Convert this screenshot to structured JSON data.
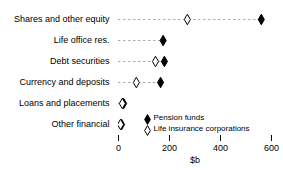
{
  "chart_data": {
    "type": "dot",
    "orientation": "horizontal",
    "categories": [
      "Shares and other equity",
      "Life office res.",
      "Debt securities",
      "Currency and deposits",
      "Loans and placements",
      "Other financial"
    ],
    "series": [
      {
        "name": "Pension funds",
        "color": "#000000",
        "marker": "filled_diamond",
        "values": [
          560,
          175,
          180,
          165,
          20,
          12
        ]
      },
      {
        "name": "Life insurance corporations",
        "color": "#000000",
        "marker": "open_diamond",
        "values": [
          270,
          null,
          145,
          70,
          15,
          8
        ]
      }
    ],
    "xlabel": "$b",
    "xlim": [
      0,
      600
    ],
    "xticks": [
      0,
      200,
      400,
      600
    ],
    "grid": false,
    "legend": "lower right"
  }
}
